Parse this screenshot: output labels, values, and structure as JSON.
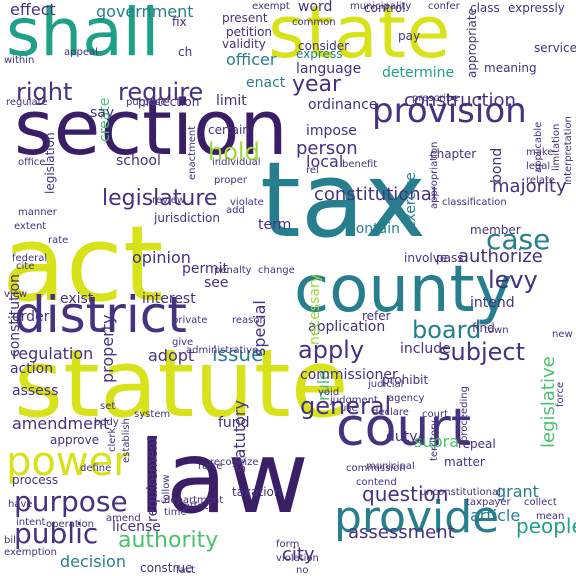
{
  "palette": {
    "purple": "#3b1f66",
    "indigo": "#46327e",
    "blue": "#365c8d",
    "teal": "#277f8e",
    "green": "#1fa187",
    "lime": "#4ac16d",
    "yellowgreen": "#a0da39",
    "yellow": "#d7e219"
  },
  "words": [
    {
      "text": "section",
      "color": "#3b1f66"
    },
    {
      "text": "statute",
      "color": "#d7e219"
    },
    {
      "text": "act",
      "color": "#d7e219"
    },
    {
      "text": "law",
      "color": "#3b1f66"
    },
    {
      "text": "shall",
      "color": "#1fa187"
    },
    {
      "text": "state",
      "color": "#d7e219"
    },
    {
      "text": "tax",
      "color": "#277f8e"
    },
    {
      "text": "county",
      "color": "#277f8e"
    },
    {
      "text": "district",
      "color": "#46327e"
    },
    {
      "text": "court",
      "color": "#46327e"
    },
    {
      "text": "provide",
      "color": "#277f8e"
    },
    {
      "text": "provision",
      "color": "#46327e"
    },
    {
      "text": "power",
      "color": "#d7e219"
    },
    {
      "text": "purpose",
      "color": "#46327e"
    },
    {
      "text": "public",
      "color": "#46327e"
    },
    {
      "text": "authority",
      "color": "#4ac16d"
    },
    {
      "text": "legislature",
      "color": "#46327e"
    },
    {
      "text": "right",
      "color": "#46327e"
    },
    {
      "text": "require",
      "color": "#46327e"
    },
    {
      "text": "hold",
      "color": "#a0da39"
    },
    {
      "text": "case",
      "color": "#277f8e"
    },
    {
      "text": "board",
      "color": "#277f8e"
    },
    {
      "text": "subject",
      "color": "#46327e"
    },
    {
      "text": "apply",
      "color": "#46327e"
    },
    {
      "text": "issue",
      "color": "#277f8e"
    },
    {
      "text": "general",
      "color": "#46327e"
    },
    {
      "text": "question",
      "color": "#46327e"
    },
    {
      "text": "assessment",
      "color": "#46327e"
    },
    {
      "text": "people",
      "color": "#1fa187"
    },
    {
      "text": "decision",
      "color": "#277f8e"
    },
    {
      "text": "city",
      "color": "#46327e"
    },
    {
      "text": "levy",
      "color": "#46327e"
    },
    {
      "text": "constitutional",
      "color": "#46327e"
    },
    {
      "text": "construction",
      "color": "#46327e"
    },
    {
      "text": "year",
      "color": "#46327e"
    },
    {
      "text": "government",
      "color": "#277f8e"
    },
    {
      "text": "effect",
      "color": "#46327e"
    },
    {
      "text": "language",
      "color": "#46327e"
    },
    {
      "text": "ordinance",
      "color": "#46327e"
    },
    {
      "text": "officer",
      "color": "#277f8e"
    },
    {
      "text": "enact",
      "color": "#277f8e"
    },
    {
      "text": "person",
      "color": "#46327e"
    },
    {
      "text": "local",
      "color": "#46327e"
    },
    {
      "text": "majority",
      "color": "#46327e"
    },
    {
      "text": "authorize",
      "color": "#46327e"
    },
    {
      "text": "regulation",
      "color": "#46327e"
    },
    {
      "text": "adopt",
      "color": "#46327e"
    },
    {
      "text": "amendment",
      "color": "#46327e"
    },
    {
      "text": "fund",
      "color": "#46327e"
    },
    {
      "text": "interest",
      "color": "#46327e"
    },
    {
      "text": "opinion",
      "color": "#46327e"
    },
    {
      "text": "application",
      "color": "#46327e"
    },
    {
      "text": "exist",
      "color": "#46327e"
    },
    {
      "text": "order",
      "color": "#46327e"
    },
    {
      "text": "permit",
      "color": "#46327e"
    },
    {
      "text": "see",
      "color": "#46327e"
    },
    {
      "text": "school",
      "color": "#46327e"
    },
    {
      "text": "limit",
      "color": "#46327e"
    },
    {
      "text": "grant",
      "color": "#277f8e"
    },
    {
      "text": "article",
      "color": "#277f8e"
    },
    {
      "text": "duty",
      "color": "#46327e"
    },
    {
      "text": "supra",
      "color": "#4ac16d"
    },
    {
      "text": "special",
      "color": "#46327e"
    },
    {
      "text": "statutory",
      "color": "#46327e"
    },
    {
      "text": "property",
      "color": "#46327e"
    },
    {
      "text": "constitution",
      "color": "#46327e"
    },
    {
      "text": "create",
      "color": "#4ac16d"
    },
    {
      "text": "legislative",
      "color": "#4ac16d"
    },
    {
      "text": "necessary",
      "color": "#a0da39"
    },
    {
      "text": "requirement",
      "color": "#46327e"
    },
    {
      "text": "rule",
      "color": "#4ac16d"
    },
    {
      "text": "bond",
      "color": "#46327e"
    },
    {
      "text": "term",
      "color": "#46327e"
    },
    {
      "text": "impose",
      "color": "#46327e"
    },
    {
      "text": "certain",
      "color": "#46327e"
    },
    {
      "text": "contain",
      "color": "#277f8e"
    },
    {
      "text": "determine",
      "color": "#1fa187"
    },
    {
      "text": "exercise",
      "color": "#277f8e"
    },
    {
      "text": "control",
      "color": "#46327e"
    },
    {
      "text": "consider",
      "color": "#46327e"
    },
    {
      "text": "express",
      "color": "#277f8e"
    },
    {
      "text": "present",
      "color": "#46327e"
    },
    {
      "text": "validity",
      "color": "#46327e"
    },
    {
      "text": "petition",
      "color": "#46327e"
    },
    {
      "text": "say",
      "color": "#46327e"
    },
    {
      "text": "intend",
      "color": "#46327e"
    },
    {
      "text": "include",
      "color": "#46327e"
    },
    {
      "text": "prohibit",
      "color": "#46327e"
    },
    {
      "text": "commissioner",
      "color": "#46327e"
    },
    {
      "text": "word",
      "color": "#46327e"
    },
    {
      "text": "common",
      "color": "#46327e"
    },
    {
      "text": "license",
      "color": "#46327e"
    },
    {
      "text": "construe",
      "color": "#46327e"
    },
    {
      "text": "taxation",
      "color": "#46327e"
    },
    {
      "text": "assess",
      "color": "#46327e"
    },
    {
      "text": "action",
      "color": "#46327e"
    },
    {
      "text": "protection",
      "color": "#46327e"
    },
    {
      "text": "approve",
      "color": "#46327e"
    },
    {
      "text": "jurisdiction",
      "color": "#46327e"
    },
    {
      "text": "chapter",
      "color": "#46327e"
    },
    {
      "text": "pass",
      "color": "#46327e"
    },
    {
      "text": "process",
      "color": "#46327e"
    },
    {
      "text": "involve",
      "color": "#46327e"
    },
    {
      "text": "refer",
      "color": "#46327e"
    },
    {
      "text": "find",
      "color": "#46327e"
    },
    {
      "text": "repeal",
      "color": "#46327e"
    },
    {
      "text": "matter",
      "color": "#46327e"
    },
    {
      "text": "member",
      "color": "#46327e"
    },
    {
      "text": "pay",
      "color": "#46327e"
    },
    {
      "text": "confer",
      "color": "#46327e"
    },
    {
      "text": "meaning",
      "color": "#46327e"
    },
    {
      "text": "service",
      "color": "#46327e"
    },
    {
      "text": "class",
      "color": "#46327e"
    },
    {
      "text": "expressly",
      "color": "#46327e"
    },
    {
      "text": "appropriate",
      "color": "#46327e"
    },
    {
      "text": "municipality",
      "color": "#46327e"
    },
    {
      "text": "exempt",
      "color": "#46327e"
    },
    {
      "text": "fix",
      "color": "#46327e"
    },
    {
      "text": "ch",
      "color": "#46327e"
    },
    {
      "text": "appeal",
      "color": "#46327e"
    },
    {
      "text": "within",
      "color": "#46327e"
    },
    {
      "text": "regulate",
      "color": "#46327e"
    },
    {
      "text": "purpose",
      "color": "#46327e"
    },
    {
      "text": "office",
      "color": "#46327e"
    },
    {
      "text": "legislation",
      "color": "#46327e"
    },
    {
      "text": "enactment",
      "color": "#46327e"
    },
    {
      "text": "proper",
      "color": "#46327e"
    },
    {
      "text": "individual",
      "color": "#46327e"
    },
    {
      "text": "benefit",
      "color": "#46327e"
    },
    {
      "text": "rel",
      "color": "#46327e"
    },
    {
      "text": "make",
      "color": "#46327e"
    },
    {
      "text": "legal",
      "color": "#46327e"
    },
    {
      "text": "relate",
      "color": "#46327e"
    },
    {
      "text": "applicable",
      "color": "#46327e"
    },
    {
      "text": "limitation",
      "color": "#46327e"
    },
    {
      "text": "interpretation",
      "color": "#46327e"
    },
    {
      "text": "prescribe",
      "color": "#46327e"
    },
    {
      "text": "review",
      "color": "#46327e"
    },
    {
      "text": "violate",
      "color": "#46327e"
    },
    {
      "text": "add",
      "color": "#46327e"
    },
    {
      "text": "manner",
      "color": "#46327e"
    },
    {
      "text": "extent",
      "color": "#46327e"
    },
    {
      "text": "rate",
      "color": "#46327e"
    },
    {
      "text": "federal",
      "color": "#46327e"
    },
    {
      "text": "cite",
      "color": "#46327e"
    },
    {
      "text": "view",
      "color": "#46327e"
    },
    {
      "text": "penalty",
      "color": "#46327e"
    },
    {
      "text": "change",
      "color": "#46327e"
    },
    {
      "text": "classification",
      "color": "#46327e"
    },
    {
      "text": "appropriation",
      "color": "#46327e"
    },
    {
      "text": "town",
      "color": "#46327e"
    },
    {
      "text": "new",
      "color": "#46327e"
    },
    {
      "text": "private",
      "color": "#46327e"
    },
    {
      "text": "give",
      "color": "#46327e"
    },
    {
      "text": "reason",
      "color": "#46327e"
    },
    {
      "text": "administrative",
      "color": "#46327e"
    },
    {
      "text": "judicial",
      "color": "#46327e"
    },
    {
      "text": "agency",
      "color": "#46327e"
    },
    {
      "text": "territory",
      "color": "#46327e"
    },
    {
      "text": "proceeding",
      "color": "#46327e"
    },
    {
      "text": "force",
      "color": "#46327e"
    },
    {
      "text": "void",
      "color": "#46327e"
    },
    {
      "text": "judgment",
      "color": "#46327e"
    },
    {
      "text": "use",
      "color": "#46327e"
    },
    {
      "text": "declare",
      "color": "#46327e"
    },
    {
      "text": "court",
      "color": "#46327e"
    },
    {
      "text": "operation",
      "color": "#46327e"
    },
    {
      "text": "clerk",
      "color": "#46327e"
    },
    {
      "text": "establish",
      "color": "#46327e"
    },
    {
      "text": "system",
      "color": "#46327e"
    },
    {
      "text": "set",
      "color": "#46327e"
    },
    {
      "text": "body",
      "color": "#46327e"
    },
    {
      "text": "intent",
      "color": "#46327e"
    },
    {
      "text": "define",
      "color": "#46327e"
    },
    {
      "text": "raise",
      "color": "#46327e"
    },
    {
      "text": "taxpayer",
      "color": "#46327e"
    },
    {
      "text": "mean",
      "color": "#46327e"
    },
    {
      "text": "collect",
      "color": "#46327e"
    },
    {
      "text": "unconstitutional",
      "color": "#46327e"
    },
    {
      "text": "contend",
      "color": "#46327e"
    },
    {
      "text": "commission",
      "color": "#46327e"
    },
    {
      "text": "municipal",
      "color": "#46327e"
    },
    {
      "text": "recognize",
      "color": "#46327e"
    },
    {
      "text": "follow",
      "color": "#46327e"
    },
    {
      "text": "time",
      "color": "#46327e"
    },
    {
      "text": "affect",
      "color": "#46327e"
    },
    {
      "text": "department",
      "color": "#46327e"
    },
    {
      "text": "have",
      "color": "#46327e"
    },
    {
      "text": "amend",
      "color": "#46327e"
    },
    {
      "text": "bill",
      "color": "#46327e"
    },
    {
      "text": "exemption",
      "color": "#46327e"
    },
    {
      "text": "fact",
      "color": "#46327e"
    },
    {
      "text": "form",
      "color": "#46327e"
    },
    {
      "text": "violation",
      "color": "#46327e"
    },
    {
      "text": "no",
      "color": "#46327e"
    }
  ]
}
